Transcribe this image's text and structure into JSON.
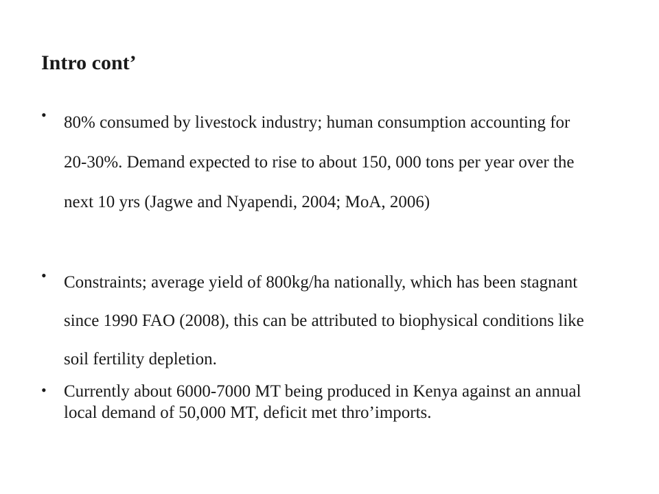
{
  "slide": {
    "title": "Intro cont’",
    "bullets": [
      {
        "marker": "•",
        "text": "80% consumed by livestock industry; human consumption accounting for 20-30%. Demand expected to rise to about 150, 000 tons per year over the next 10 yrs (Jagwe and Nyapendi, 2004; MoA, 2006)"
      },
      {
        "marker": "•",
        "text": "Constraints; average yield of 800kg/ha nationally, which has been stagnant since 1990 FAO (2008), this can be attributed to biophysical conditions like soil fertility depletion."
      },
      {
        "marker": "•",
        "text": "Currently about 6000-7000 MT being produced in Kenya against an annual local demand of 50,000 MT, deficit met thro’imports."
      }
    ]
  }
}
